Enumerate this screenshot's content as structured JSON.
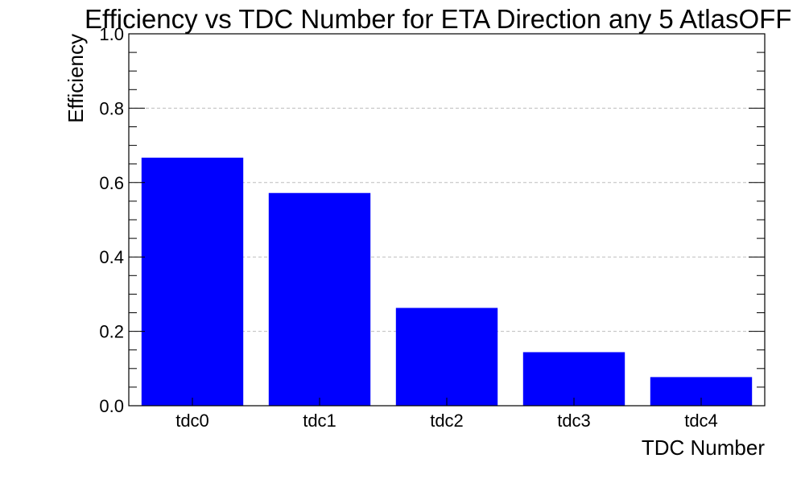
{
  "chart_data": {
    "type": "bar",
    "title": "Efficiency vs TDC Number for ETA Direction any 5 AtlasOFF",
    "xlabel": "TDC Number",
    "ylabel": "Efficiency",
    "categories": [
      "tdc0",
      "tdc1",
      "tdc2",
      "tdc3",
      "tdc4"
    ],
    "values": [
      0.667,
      0.572,
      0.263,
      0.144,
      0.077
    ],
    "ylim": [
      0,
      1.0
    ],
    "yticks": [
      0.0,
      0.2,
      0.4,
      0.6,
      0.8,
      1.0
    ],
    "ytick_labels": [
      "0.0",
      "0.2",
      "0.4",
      "0.6",
      "0.8",
      "1.0"
    ],
    "grid": "horizontal dashed",
    "legend": "none",
    "bar_color": "#0000ff"
  }
}
